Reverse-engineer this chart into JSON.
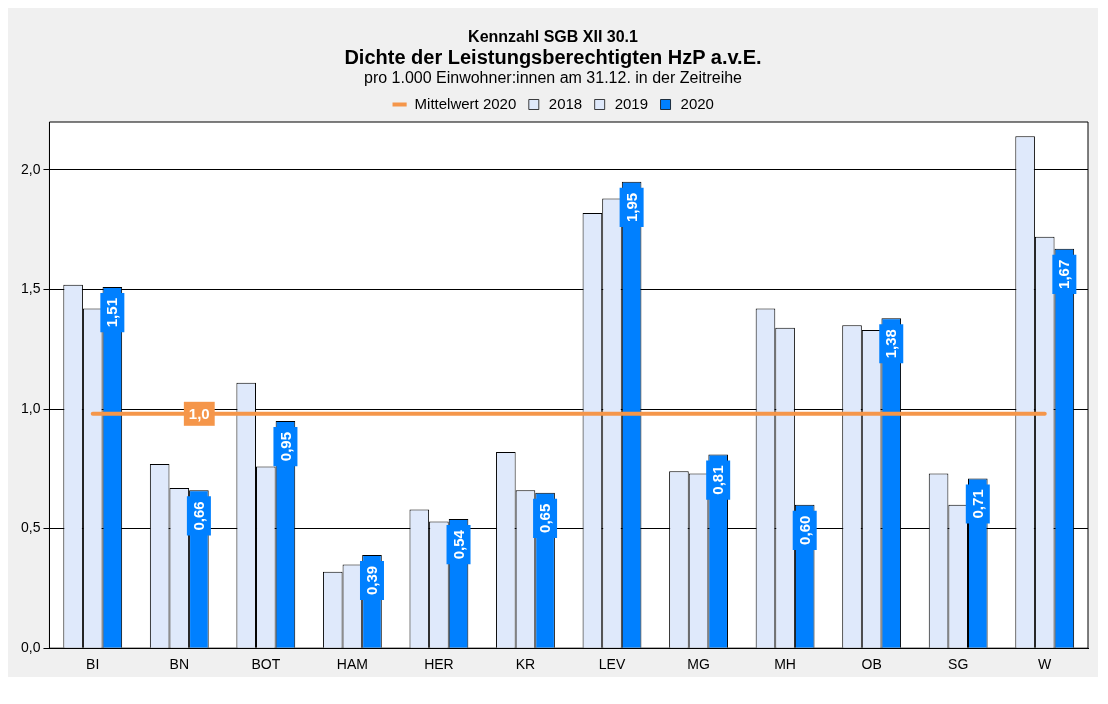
{
  "chart_data": {
    "type": "bar",
    "annotations": [
      "Kennzahl SGB XII 30.1"
    ],
    "title": "Dichte der Leistungsberechtigten HzP a.v.E.",
    "subtitle": "pro 1.000 Einwohner:innen am 31.12. in der Zeitreihe",
    "categories": [
      "BI",
      "BN",
      "BOT",
      "HAM",
      "HER",
      "KR",
      "LEV",
      "MG",
      "MH",
      "OB",
      "SG",
      "W"
    ],
    "series": [
      {
        "name": "2018",
        "color": "#dfe9fb",
        "values": [
          1.52,
          0.77,
          1.11,
          0.32,
          0.58,
          0.82,
          1.82,
          0.74,
          1.42,
          1.35,
          0.73,
          2.14
        ]
      },
      {
        "name": "2019",
        "color": "#dfe9fb",
        "values": [
          1.42,
          0.67,
          0.76,
          0.35,
          0.53,
          0.66,
          1.88,
          0.73,
          1.34,
          1.33,
          0.6,
          1.72
        ]
      },
      {
        "name": "2020",
        "color": "#0080ff",
        "values": [
          1.51,
          0.66,
          0.95,
          0.39,
          0.54,
          0.65,
          1.95,
          0.81,
          0.6,
          1.38,
          0.71,
          1.67
        ],
        "value_labels": [
          "1,51",
          "0,66",
          "0,95",
          "0,39",
          "0,54",
          "0,65",
          "1,95",
          "0,81",
          "0,60",
          "1,38",
          "0,71",
          "1,67"
        ]
      },
      {
        "name": "Mittelwert 2020",
        "type": "line",
        "color": "#f5964a",
        "values": [
          0.98,
          0.98,
          0.98,
          0.98,
          0.98,
          0.98,
          0.98,
          0.98,
          0.98,
          0.98,
          0.98,
          0.98
        ],
        "value_labels": [
          null,
          "1,0",
          null,
          null,
          null,
          null,
          null,
          null,
          null,
          null,
          null,
          null
        ]
      }
    ],
    "ylim": [
      0,
      2.2
    ],
    "yticks": [
      {
        "value": 0,
        "label": "0,0"
      },
      {
        "value": 0.5,
        "label": "0,5"
      },
      {
        "value": 1,
        "label": "1,0"
      },
      {
        "value": 1.5,
        "label": "1,5"
      },
      {
        "value": 2,
        "label": "2,0"
      }
    ],
    "grid": "y",
    "legend": "top",
    "marker": "none",
    "line_style": "solid"
  }
}
